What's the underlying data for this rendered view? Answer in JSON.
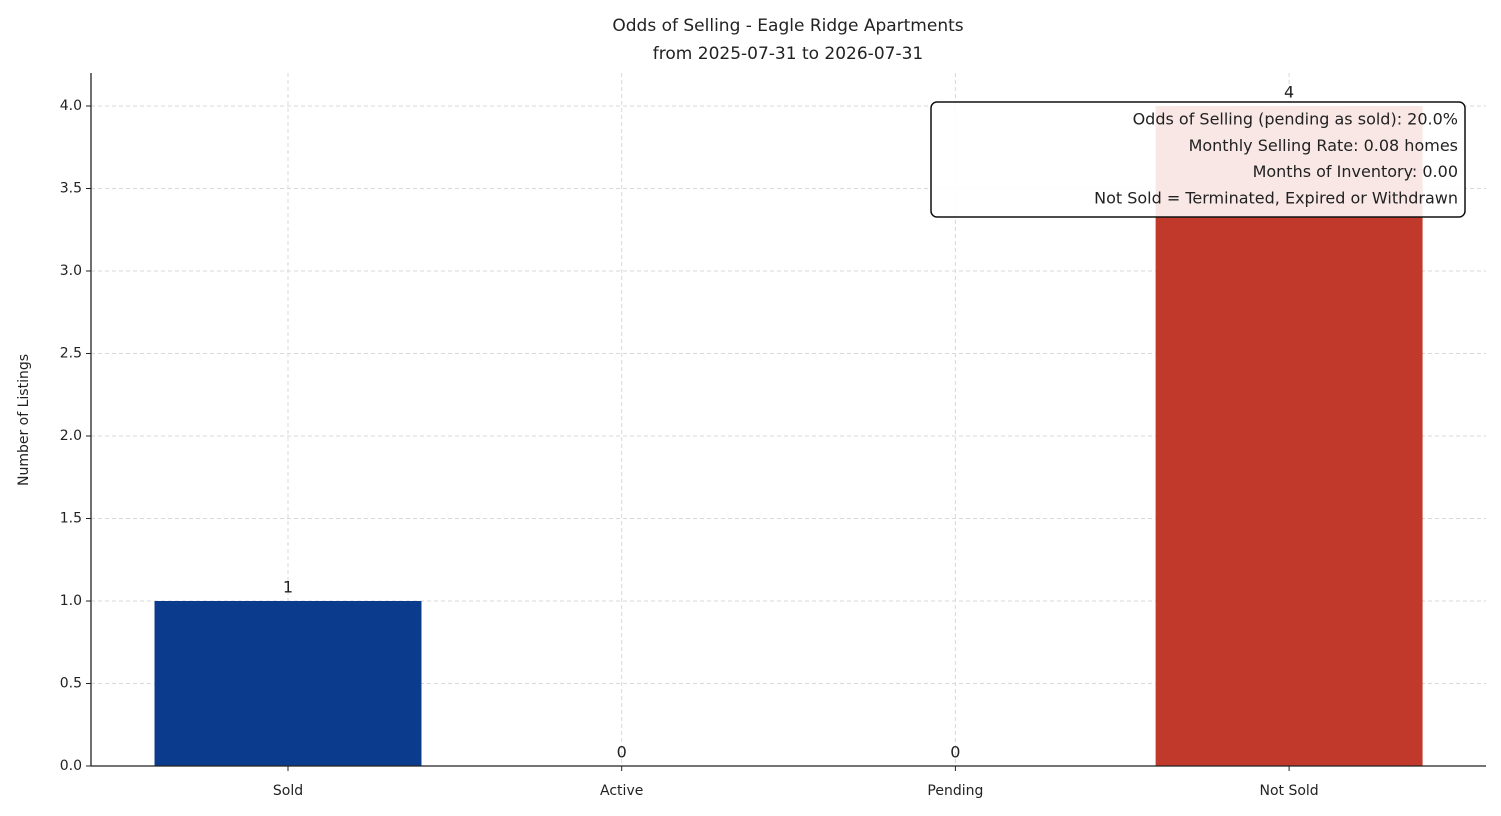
{
  "chart_data": {
    "type": "bar",
    "title": "Odds of Selling - Eagle Ridge Apartments",
    "subtitle": "from 2025-07-31 to 2026-07-31",
    "y_label": "Number of Listings",
    "categories": [
      "Sold",
      "Active",
      "Pending",
      "Not Sold"
    ],
    "values": [
      1,
      0,
      0,
      4
    ],
    "colors": [
      "#0b3b8c",
      null,
      null,
      "#c0392b"
    ],
    "ylim": [
      0,
      4.2
    ],
    "yticks": [
      {
        "value": 0,
        "label": "0.0"
      },
      {
        "value": 0.5,
        "label": "0.5"
      },
      {
        "value": 1,
        "label": "1.0"
      },
      {
        "value": 1.5,
        "label": "1.5"
      },
      {
        "value": 2,
        "label": "2.0"
      },
      {
        "value": 2.5,
        "label": "2.5"
      },
      {
        "value": 3,
        "label": "3.0"
      },
      {
        "value": 3.5,
        "label": "3.5"
      },
      {
        "value": 4,
        "label": "4.0"
      }
    ],
    "grid": true,
    "annotation": [
      "Odds of Selling (pending as sold): 20.0%",
      "Monthly Selling Rate: 0.08 homes",
      "Months of Inventory: 0.00",
      "Not Sold = Terminated, Expired or Withdrawn"
    ]
  }
}
